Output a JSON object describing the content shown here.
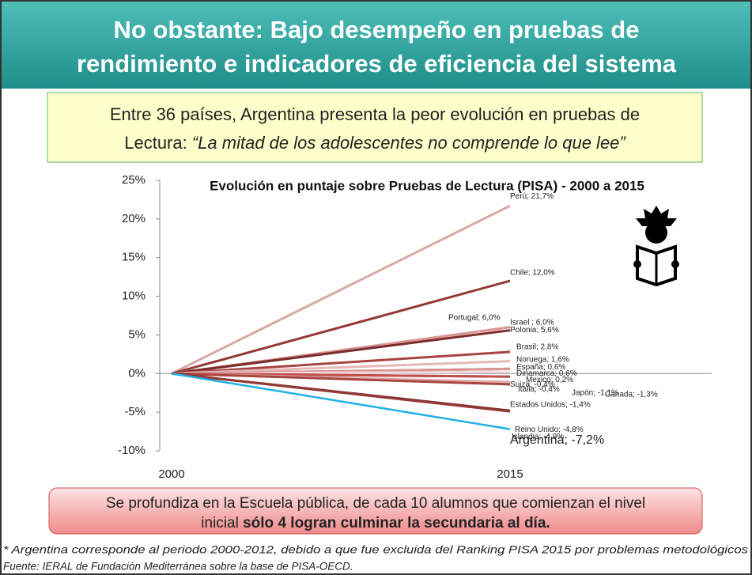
{
  "header": {
    "title_line1": "No obstante: Bajo desempeño en pruebas de",
    "title_line2": "rendimiento e indicadores de eficiencia del sistema"
  },
  "callout_top": {
    "line1": "Entre 36 países, Argentina presenta la peor evolución en pruebas de",
    "line2_plain": "Lectura: ",
    "line2_italic": "“La mitad de los adolescentes no comprende lo que lee”"
  },
  "callout_bottom": {
    "line1": "Se profundiza en la Escuela pública, de cada 10 alumnos que comienzan el nivel",
    "line2_plain": "inicial ",
    "line2_bold": "sólo 4 logran culminar la secundaria al día."
  },
  "footnotes": [
    "* Argentina corresponde al periodo 2000-2012, debido a que fue excluida del Ranking PISA 2015 por problemas metodológicos",
    "Fuente: IERAL de Fundación Mediterránea sobre la base de PISA-OECD."
  ],
  "chart_data": {
    "type": "line",
    "title": "Evolución en puntaje sobre Pruebas de Lectura (PISA) - 2000 a 2015",
    "categories": [
      "2000",
      "2015"
    ],
    "ylim": [
      -10,
      25
    ],
    "yticks": [
      {
        "value": -10,
        "label": "-10%"
      },
      {
        "value": -5,
        "label": "-5%"
      },
      {
        "value": 0,
        "label": "0%"
      },
      {
        "value": 5,
        "label": "5%"
      },
      {
        "value": 10,
        "label": "10%"
      },
      {
        "value": 15,
        "label": "15%"
      },
      {
        "value": 20,
        "label": "20%"
      },
      {
        "value": 25,
        "label": "25%"
      }
    ],
    "series": [
      {
        "color": "#dba7a5",
        "values": [
          0,
          21.7
        ],
        "value_labels": [
          null,
          "Perú; 21,7%"
        ]
      },
      {
        "color": "#953735",
        "values": [
          0,
          12.0
        ],
        "value_labels": [
          null,
          "Chile; 12,0%"
        ]
      },
      {
        "color": "#e6b9b8",
        "values": [
          0,
          6.0
        ],
        "value_labels": [
          null,
          "Portugal; 6,0%"
        ]
      },
      {
        "color": "#d99694",
        "values": [
          0,
          6.0
        ],
        "value_labels": [
          null,
          "Israel ; 6,0%"
        ]
      },
      {
        "color": "#7b2c2a",
        "values": [
          0,
          5.6
        ],
        "value_labels": [
          null,
          "Polonia; 5,6%"
        ]
      },
      {
        "color": "#a94442",
        "values": [
          0,
          2.8
        ],
        "value_labels": [
          null,
          "Brasil; 2,8%"
        ]
      },
      {
        "color": "#e6b9b8",
        "values": [
          0,
          1.6
        ],
        "value_labels": [
          null,
          "Noruega; 1,6%"
        ]
      },
      {
        "color": "#c0504d",
        "values": [
          0,
          0.6
        ],
        "value_labels": [
          null,
          "España; 0,6%"
        ]
      },
      {
        "color": "#d99694",
        "values": [
          0,
          0.6
        ],
        "value_labels": [
          null,
          "Dinamarca; 0,6%"
        ]
      },
      {
        "color": "#f2dcdb",
        "values": [
          0,
          0.2
        ],
        "value_labels": [
          null,
          "Mexico; 0,2%"
        ]
      },
      {
        "color": "#953735",
        "values": [
          0,
          -0.4
        ],
        "value_labels": [
          null,
          "Suiza; -0,4%"
        ]
      },
      {
        "color": "#c0504d",
        "values": [
          0,
          -0.4
        ],
        "value_labels": [
          null,
          "Italia; -0,4%"
        ]
      },
      {
        "color": "#dba7a5",
        "values": [
          0,
          -1.1
        ],
        "value_labels": [
          null,
          "Japón; -1,1%"
        ]
      },
      {
        "color": "#e6b9b8",
        "values": [
          0,
          -1.3
        ],
        "value_labels": [
          null,
          "Canada; -1,3%"
        ]
      },
      {
        "color": "#a94442",
        "values": [
          0,
          -1.4
        ],
        "value_labels": [
          null,
          "Estados Unidos; -1,4%"
        ]
      },
      {
        "color": "#7b2c2a",
        "values": [
          0,
          -4.8
        ],
        "value_labels": [
          null,
          "Reino Unido; -4,8%"
        ]
      },
      {
        "color": "#953735",
        "values": [
          0,
          -4.9
        ],
        "value_labels": [
          null,
          "Islandia; -4,9%"
        ]
      },
      {
        "color": "#1fb0e6",
        "values": [
          0,
          -7.2
        ],
        "value_labels": [
          null,
          "Argentina; -7,2%"
        ]
      }
    ]
  }
}
